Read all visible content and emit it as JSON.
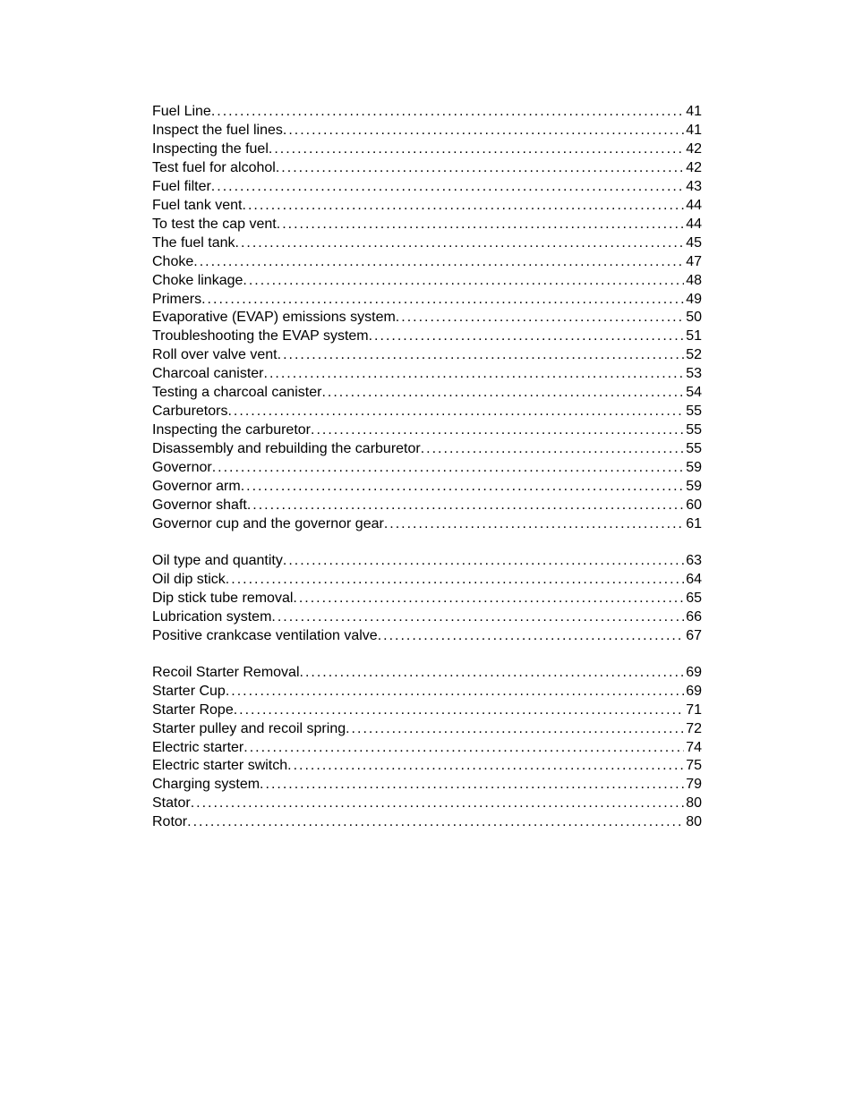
{
  "toc": {
    "sections": [
      {
        "entries": [
          {
            "title": "Fuel Line ",
            "page": "41"
          },
          {
            "title": "Inspect the fuel lines ",
            "page": " 41"
          },
          {
            "title": "Inspecting the fuel",
            "page": " 42"
          },
          {
            "title": "Test fuel for alcohol ",
            "page": " 42"
          },
          {
            "title": "Fuel filter ",
            "page": " 43"
          },
          {
            "title": "Fuel tank vent ",
            "page": " 44"
          },
          {
            "title": "To test the cap vent ",
            "page": " 44"
          },
          {
            "title": "The fuel tank ",
            "page": " 45"
          },
          {
            "title": "Choke ",
            "page": " 47"
          },
          {
            "title": "Choke linkage ",
            "page": " 48"
          },
          {
            "title": "Primers",
            "page": "  49"
          },
          {
            "title": "Evaporative (EVAP) emissions system ",
            "page": " 50"
          },
          {
            "title": "Troubleshooting the EVAP system ",
            "page": " 51"
          },
          {
            "title": "Roll over valve vent ",
            "page": " 52"
          },
          {
            "title": "Charcoal canister ",
            "page": " 53"
          },
          {
            "title": "Testing a charcoal canister ",
            "page": " 54"
          },
          {
            "title": "Carburetors ",
            "page": " 55"
          },
          {
            "title": "Inspecting the carburetor ",
            "page": "  55"
          },
          {
            "title": "Disassembly and rebuilding the carburetor ",
            "page": " 55"
          },
          {
            "title": "Governor ",
            "page": "  59"
          },
          {
            "title": "Governor arm ",
            "page": " 59"
          },
          {
            "title": "Governor shaft ",
            "page": " 60"
          },
          {
            "title": "Governor cup and the governor gear ",
            "page": " 61"
          }
        ]
      },
      {
        "entries": [
          {
            "title": "Oil type and quantity ",
            "page": " 63"
          },
          {
            "title": "Oil dip stick ",
            "page": " 64"
          },
          {
            "title": "Dip stick tube removal ",
            "page": " 65"
          },
          {
            "title": "Lubrication system ",
            "page": " 66"
          },
          {
            "title": "Positive crankcase ventilation valve ",
            "page": " 67"
          }
        ]
      },
      {
        "entries": [
          {
            "title": "Recoil Starter Removal ",
            "page": " 69"
          },
          {
            "title": "Starter Cup ",
            "page": " 69"
          },
          {
            "title": "Starter Rope ",
            "page": " 71"
          },
          {
            "title": "Starter pulley and recoil spring  ",
            "page": " 72"
          },
          {
            "title": "Electric starter ",
            "page": " 74"
          },
          {
            "title": "Electric starter switch ",
            "page": " 75"
          },
          {
            "title": "Charging system ",
            "page": " 79"
          },
          {
            "title": "Stator ",
            "page": " 80"
          },
          {
            "title": "Rotor ",
            "page": "  80"
          }
        ]
      }
    ]
  }
}
